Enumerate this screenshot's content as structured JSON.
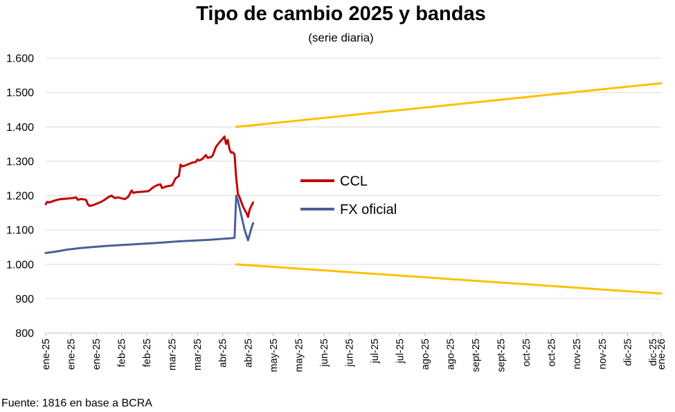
{
  "chart_data": {
    "type": "line",
    "title": "Tipo de cambio 2025 y bandas",
    "subtitle": "(serie diaria)",
    "source": "Fuente: 1816 en base a BCRA",
    "ylim": [
      800,
      1600
    ],
    "yticks": [
      800,
      900,
      1000,
      1100,
      1200,
      1300,
      1400,
      1500,
      1600
    ],
    "ytick_labels": [
      "800",
      "900",
      "1.000",
      "1.100",
      "1.200",
      "1.300",
      "1.400",
      "1.500",
      "1.600"
    ],
    "xlim": [
      "2025-01-01",
      "2026-01-01"
    ],
    "xticks": [
      "2025-01-01",
      "2025-01-16",
      "2025-01-31",
      "2025-02-15",
      "2025-03-02",
      "2025-03-17",
      "2025-04-01",
      "2025-04-16",
      "2025-05-01",
      "2025-05-16",
      "2025-05-31",
      "2025-06-15",
      "2025-06-30",
      "2025-07-15",
      "2025-07-30",
      "2025-08-14",
      "2025-08-29",
      "2025-09-13",
      "2025-09-28",
      "2025-10-13",
      "2025-10-28",
      "2025-11-12",
      "2025-11-27",
      "2025-12-12",
      "2025-12-27",
      "2026-01-01"
    ],
    "xtick_labels": [
      "ene-25",
      "ene-25",
      "ene-25",
      "feb-25",
      "feb-25",
      "mar-25",
      "mar-25",
      "abr-25",
      "abr-25",
      "may-25",
      "may-25",
      "jun-25",
      "jun-25",
      "jul-25",
      "jul-25",
      "ago-25",
      "ago-25",
      "sept-25",
      "sept-25",
      "oct-25",
      "oct-25",
      "nov-25",
      "nov-25",
      "dic-25",
      "dic-25",
      "ene-26"
    ],
    "grid": true,
    "legend_placement": "center",
    "series": [
      {
        "name": "CCL",
        "color": "#C00000",
        "points": [
          [
            "2025-01-01",
            1175
          ],
          [
            "2025-01-02",
            1182
          ],
          [
            "2025-01-03",
            1180
          ],
          [
            "2025-01-06",
            1185
          ],
          [
            "2025-01-08",
            1188
          ],
          [
            "2025-01-10",
            1190
          ],
          [
            "2025-01-13",
            1191
          ],
          [
            "2025-01-15",
            1192
          ],
          [
            "2025-01-17",
            1193
          ],
          [
            "2025-01-19",
            1195
          ],
          [
            "2025-01-20",
            1188
          ],
          [
            "2025-01-22",
            1190
          ],
          [
            "2025-01-24",
            1189
          ],
          [
            "2025-01-25",
            1187
          ],
          [
            "2025-01-26",
            1175
          ],
          [
            "2025-01-27",
            1170
          ],
          [
            "2025-01-29",
            1172
          ],
          [
            "2025-01-31",
            1176
          ],
          [
            "2025-02-03",
            1182
          ],
          [
            "2025-02-05",
            1188
          ],
          [
            "2025-02-07",
            1195
          ],
          [
            "2025-02-09",
            1200
          ],
          [
            "2025-02-11",
            1193
          ],
          [
            "2025-02-13",
            1195
          ],
          [
            "2025-02-15",
            1192
          ],
          [
            "2025-02-17",
            1190
          ],
          [
            "2025-02-19",
            1197
          ],
          [
            "2025-02-21",
            1215
          ],
          [
            "2025-02-22",
            1208
          ],
          [
            "2025-02-24",
            1210
          ],
          [
            "2025-02-27",
            1211
          ],
          [
            "2025-03-01",
            1212
          ],
          [
            "2025-03-03",
            1213
          ],
          [
            "2025-03-06",
            1225
          ],
          [
            "2025-03-08",
            1230
          ],
          [
            "2025-03-10",
            1233
          ],
          [
            "2025-03-11",
            1222
          ],
          [
            "2025-03-13",
            1226
          ],
          [
            "2025-03-15",
            1228
          ],
          [
            "2025-03-17",
            1230
          ],
          [
            "2025-03-19",
            1250
          ],
          [
            "2025-03-21",
            1257
          ],
          [
            "2025-03-22",
            1290
          ],
          [
            "2025-03-23",
            1285
          ],
          [
            "2025-03-25",
            1288
          ],
          [
            "2025-03-27",
            1292
          ],
          [
            "2025-03-29",
            1296
          ],
          [
            "2025-03-31",
            1298
          ],
          [
            "2025-04-01",
            1305
          ],
          [
            "2025-04-02",
            1302
          ],
          [
            "2025-04-04",
            1307
          ],
          [
            "2025-04-06",
            1318
          ],
          [
            "2025-04-07",
            1310
          ],
          [
            "2025-04-09",
            1312
          ],
          [
            "2025-04-10",
            1316
          ],
          [
            "2025-04-12",
            1342
          ],
          [
            "2025-04-14",
            1355
          ],
          [
            "2025-04-16",
            1365
          ],
          [
            "2025-04-17",
            1372
          ],
          [
            "2025-04-18",
            1350
          ],
          [
            "2025-04-19",
            1362
          ],
          [
            "2025-04-20",
            1335
          ],
          [
            "2025-04-21",
            1325
          ],
          [
            "2025-04-22",
            1326
          ],
          [
            "2025-04-23",
            1320
          ],
          [
            "2025-04-24",
            1250
          ],
          [
            "2025-04-25",
            1205
          ],
          [
            "2025-04-26",
            1195
          ],
          [
            "2025-04-28",
            1168
          ],
          [
            "2025-04-30",
            1150
          ],
          [
            "2025-05-01",
            1138
          ],
          [
            "2025-05-02",
            1160
          ],
          [
            "2025-05-04",
            1180
          ]
        ]
      },
      {
        "name": "FX oficial",
        "color": "#4A5F95",
        "points": [
          [
            "2025-01-01",
            1033
          ],
          [
            "2025-01-07",
            1037
          ],
          [
            "2025-01-14",
            1043
          ],
          [
            "2025-01-21",
            1047
          ],
          [
            "2025-01-28",
            1050
          ],
          [
            "2025-02-07",
            1054
          ],
          [
            "2025-02-21",
            1058
          ],
          [
            "2025-03-07",
            1062
          ],
          [
            "2025-03-21",
            1067
          ],
          [
            "2025-04-07",
            1071
          ],
          [
            "2025-04-21",
            1076
          ],
          [
            "2025-04-23",
            1077
          ],
          [
            "2025-04-24",
            1200
          ],
          [
            "2025-04-25",
            1185
          ],
          [
            "2025-04-29",
            1100
          ],
          [
            "2025-05-01",
            1070
          ],
          [
            "2025-05-03",
            1105
          ],
          [
            "2025-05-04",
            1120
          ]
        ]
      },
      {
        "name": "",
        "color": "#FFC000",
        "points": [
          [
            "2025-04-24",
            1400
          ],
          [
            "2026-01-01",
            1527
          ]
        ]
      },
      {
        "name": "",
        "color": "#FFC000",
        "points": [
          [
            "2025-04-24",
            1000
          ],
          [
            "2026-01-01",
            915
          ]
        ]
      }
    ]
  }
}
